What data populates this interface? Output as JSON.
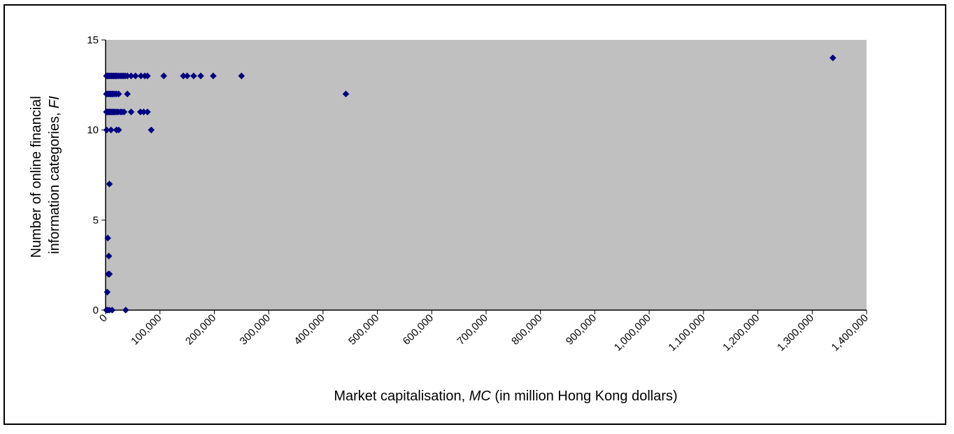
{
  "chart_data": {
    "type": "scatter",
    "title": "",
    "xlabel": {
      "prefix": "Market capitalisation, ",
      "italic": "MC",
      "suffix": "  (in million Hong Kong dollars)"
    },
    "ylabel": {
      "line1": "Number of online financial",
      "line2_prefix": "information categories, ",
      "line2_italic": "FI"
    },
    "xlim": [
      0,
      1400000
    ],
    "ylim": [
      0,
      15
    ],
    "x_ticks": [
      0,
      100000,
      200000,
      300000,
      400000,
      500000,
      600000,
      700000,
      800000,
      900000,
      1000000,
      1100000,
      1200000,
      1300000,
      1400000
    ],
    "x_tick_labels": [
      "0",
      "100,000",
      "200,000",
      "300,000",
      "400,000",
      "500,000",
      "600,000",
      "700,000",
      "800,000",
      "900,000",
      "1,000,000",
      "1,100,000",
      "1,200,000",
      "1,300,000",
      "1,400,000"
    ],
    "y_ticks": [
      0,
      5,
      10,
      15
    ],
    "y_tick_labels": [
      "0",
      "5",
      "10",
      "15"
    ],
    "grid": false,
    "legend": "none",
    "colors": {
      "plot_background": "#c0c0c0",
      "marker": "#000080",
      "axis": "#000000"
    },
    "series": [
      {
        "marker": "diamond",
        "points": [
          [
            1500,
            13
          ],
          [
            3500,
            13
          ],
          [
            5000,
            13
          ],
          [
            7000,
            13
          ],
          [
            9000,
            13
          ],
          [
            11000,
            13
          ],
          [
            13000,
            13
          ],
          [
            15000,
            13
          ],
          [
            17000,
            13
          ],
          [
            19000,
            13
          ],
          [
            21000,
            13
          ],
          [
            24000,
            13
          ],
          [
            27000,
            13
          ],
          [
            30000,
            13
          ],
          [
            33000,
            13
          ],
          [
            36000,
            13
          ],
          [
            40000,
            13
          ],
          [
            47000,
            13
          ],
          [
            55000,
            13
          ],
          [
            65000,
            13
          ],
          [
            72000,
            13
          ],
          [
            77000,
            13
          ],
          [
            107000,
            13
          ],
          [
            143000,
            13
          ],
          [
            150000,
            13
          ],
          [
            162000,
            13
          ],
          [
            175000,
            13
          ],
          [
            198000,
            13
          ],
          [
            250000,
            13
          ],
          [
            1500,
            12
          ],
          [
            4000,
            12
          ],
          [
            6000,
            12
          ],
          [
            8000,
            12
          ],
          [
            10000,
            12
          ],
          [
            12000,
            12
          ],
          [
            14000,
            12
          ],
          [
            17000,
            12
          ],
          [
            20000,
            12
          ],
          [
            24000,
            12
          ],
          [
            40000,
            12
          ],
          [
            442000,
            12
          ],
          [
            1500,
            11
          ],
          [
            3500,
            11
          ],
          [
            5000,
            11
          ],
          [
            7000,
            11
          ],
          [
            9000,
            11
          ],
          [
            11000,
            11
          ],
          [
            13000,
            11
          ],
          [
            15000,
            11
          ],
          [
            17000,
            11
          ],
          [
            20000,
            11
          ],
          [
            23000,
            11
          ],
          [
            27000,
            11
          ],
          [
            30000,
            11
          ],
          [
            34000,
            11
          ],
          [
            47000,
            11
          ],
          [
            64000,
            11
          ],
          [
            70000,
            11
          ],
          [
            77000,
            11
          ],
          [
            2000,
            10
          ],
          [
            10000,
            10
          ],
          [
            20000,
            10
          ],
          [
            24000,
            10
          ],
          [
            84000,
            10
          ],
          [
            7000,
            7
          ],
          [
            4000,
            4
          ],
          [
            6000,
            3
          ],
          [
            5000,
            2
          ],
          [
            7000,
            2
          ],
          [
            3000,
            1
          ],
          [
            1500,
            0
          ],
          [
            4000,
            0
          ],
          [
            7000,
            0
          ],
          [
            12000,
            0
          ],
          [
            37000,
            0
          ],
          [
            1338000,
            14
          ]
        ]
      }
    ]
  }
}
